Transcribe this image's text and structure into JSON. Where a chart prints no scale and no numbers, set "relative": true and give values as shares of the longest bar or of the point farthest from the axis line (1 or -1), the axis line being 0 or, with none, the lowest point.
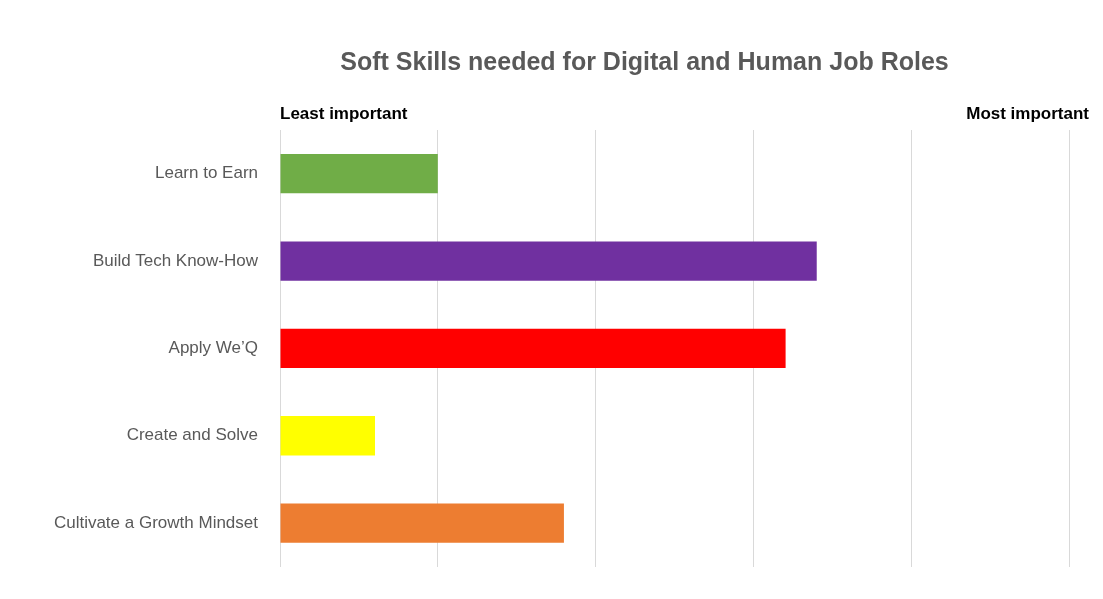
{
  "chart_data": {
    "type": "bar",
    "orientation": "horizontal",
    "relative": true,
    "title": "Soft Skills needed for Digital and Human Job Roles",
    "annotations": [
      "Least important",
      "Most important"
    ],
    "categories": [
      "Learn to Earn",
      "Build Tech Know-How",
      "Apply We’Q",
      "Create and Solve",
      "Cultivate a Growth Mindset"
    ],
    "values": [
      0.294,
      1,
      0.942,
      0.177,
      0.529
    ],
    "colors": [
      "#70ad47",
      "#7030a0",
      "#ff0000",
      "#ffff00",
      "#ed7d31"
    ],
    "grid": "x",
    "legend": false
  }
}
